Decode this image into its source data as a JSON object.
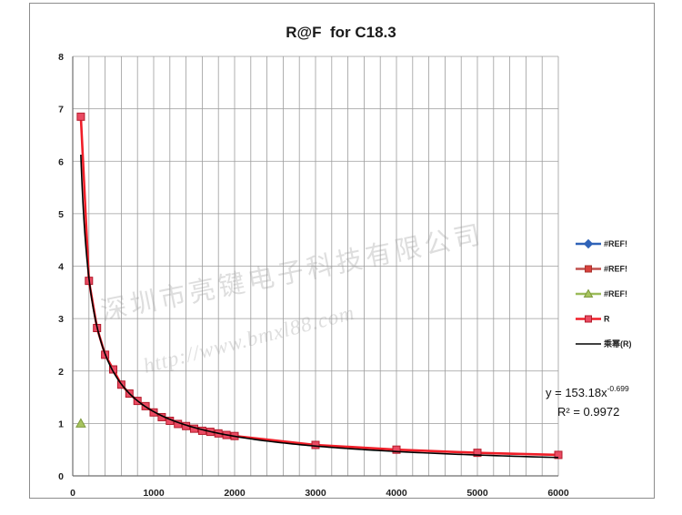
{
  "chart_data": {
    "type": "scatter",
    "title": "R@F  for C18.3",
    "xlabel": "",
    "ylabel": "",
    "xlim": [
      0,
      6000
    ],
    "ylim": [
      0,
      8
    ],
    "x_ticks": [
      0,
      1000,
      2000,
      3000,
      4000,
      5000,
      6000
    ],
    "y_ticks": [
      0,
      1,
      2,
      3,
      4,
      5,
      6,
      7,
      8
    ],
    "x_grid_step": 200,
    "y_grid_step": 1,
    "grid": true,
    "legend_position": "right",
    "series": [
      {
        "name": "#REF!",
        "color": "#2f63b8",
        "marker": "diamond",
        "marker_fill": "#2f63b8",
        "marker_edge": "#2f63b8",
        "x": [],
        "y": []
      },
      {
        "name": "#REF!",
        "color": "#c0504d",
        "marker": "square",
        "marker_fill": "#d9413c",
        "marker_edge": "#a8322e",
        "x": [],
        "y": []
      },
      {
        "name": "#REF!",
        "color": "#9bbb59",
        "marker": "triangle",
        "marker_fill": "#a7c45e",
        "marker_edge": "#7e9a3e",
        "x": [
          100
        ],
        "y": [
          1.0
        ]
      },
      {
        "name": "R",
        "color": "#f01e28",
        "marker": "square",
        "marker_fill": "#ea4a62",
        "marker_edge": "#b31b2b",
        "x": [
          100,
          200,
          300,
          400,
          500,
          600,
          700,
          800,
          900,
          1000,
          1100,
          1200,
          1300,
          1400,
          1500,
          1600,
          1700,
          1800,
          1900,
          2000,
          3000,
          4000,
          5000,
          6000
        ],
        "y": [
          6.85,
          3.72,
          2.82,
          2.31,
          2.03,
          1.74,
          1.57,
          1.43,
          1.33,
          1.21,
          1.12,
          1.05,
          0.99,
          0.95,
          0.9,
          0.86,
          0.84,
          0.81,
          0.78,
          0.76,
          0.59,
          0.5,
          0.44,
          0.4
        ]
      }
    ],
    "trendline": {
      "name": "乘幂(R)",
      "a": 153.18,
      "b": -0.699,
      "x_range": [
        100,
        6000
      ],
      "color": "#000000",
      "equation": "y = 153.18x",
      "exponent": "-0.699",
      "r_squared": "R² = 0.9972"
    }
  },
  "watermark": {
    "company": "深圳市亮键电子科技有限公司",
    "url": "http://www.bmxl88.com"
  }
}
